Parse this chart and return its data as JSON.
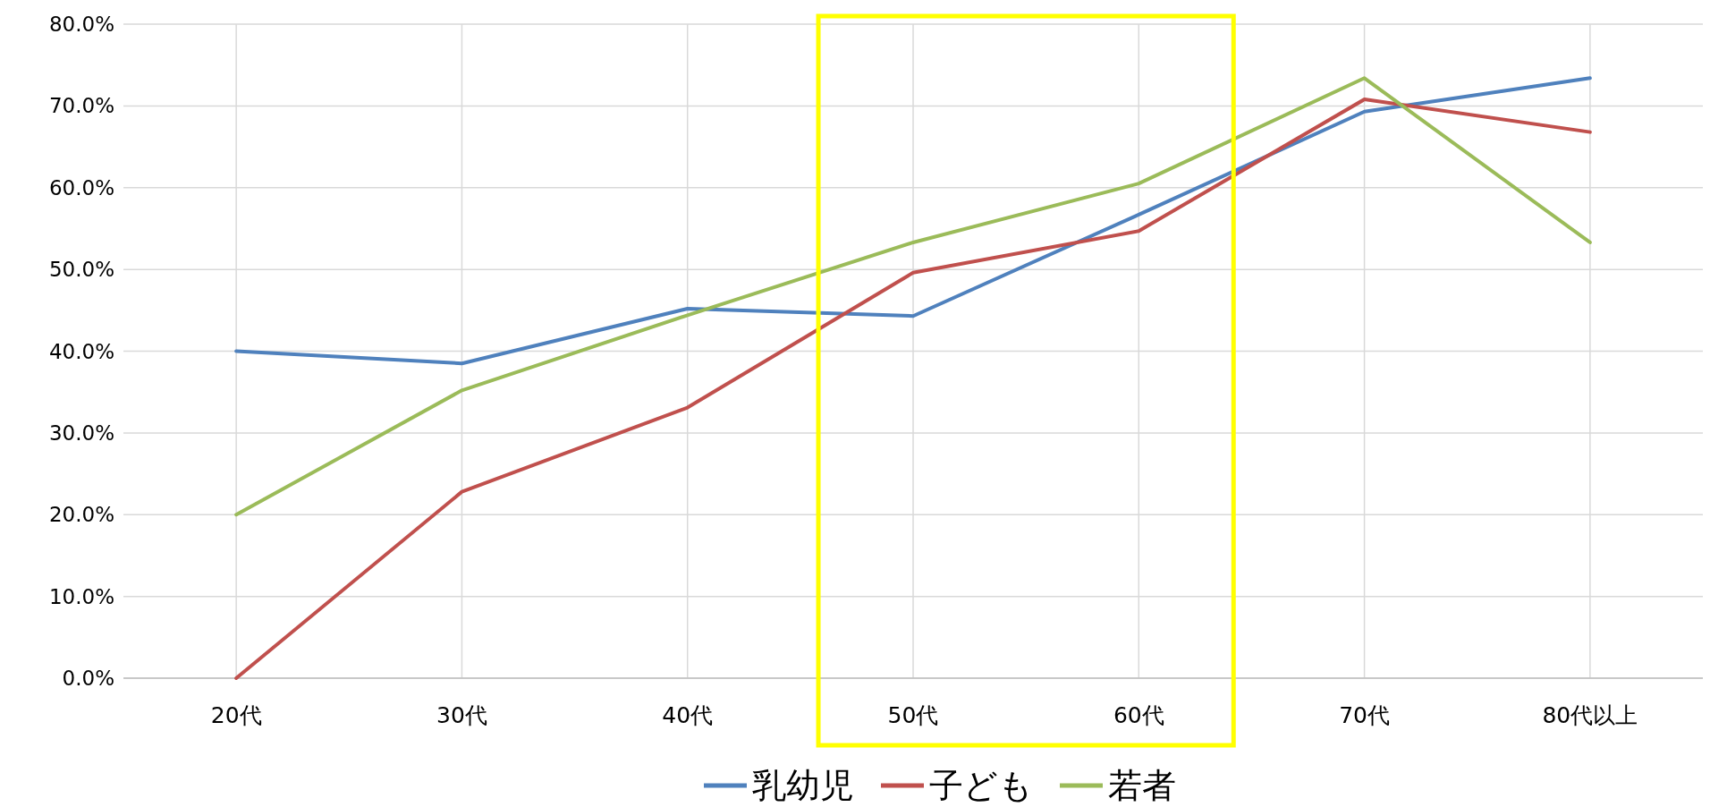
{
  "chart_data": {
    "type": "line",
    "categories": [
      "20代",
      "30代",
      "40代",
      "50代",
      "60代",
      "70代",
      "80代以上"
    ],
    "series": [
      {
        "name": "乳幼児",
        "color": "#4f81bd",
        "values": [
          40.0,
          38.5,
          45.2,
          44.3,
          56.7,
          69.3,
          73.4
        ]
      },
      {
        "name": "子ども",
        "color": "#c0504d",
        "values": [
          0.0,
          22.8,
          33.1,
          49.6,
          54.7,
          70.8,
          66.8
        ]
      },
      {
        "name": "若者",
        "color": "#9bbb59",
        "values": [
          20.0,
          35.2,
          44.4,
          53.3,
          60.5,
          73.4,
          53.3
        ]
      }
    ],
    "ylim": [
      0,
      80
    ],
    "yticks": [
      {
        "value": 0,
        "label": "0.0%"
      },
      {
        "value": 10,
        "label": "10.0%"
      },
      {
        "value": 20,
        "label": "20.0%"
      },
      {
        "value": 30,
        "label": "30.0%"
      },
      {
        "value": 40,
        "label": "40.0%"
      },
      {
        "value": 50,
        "label": "50.0%"
      },
      {
        "value": 60,
        "label": "60.0%"
      },
      {
        "value": 70,
        "label": "70.0%"
      },
      {
        "value": 80,
        "label": "80.0%"
      }
    ],
    "grid": true,
    "legend": "bottom",
    "marker": "none",
    "line_style": "solid"
  }
}
